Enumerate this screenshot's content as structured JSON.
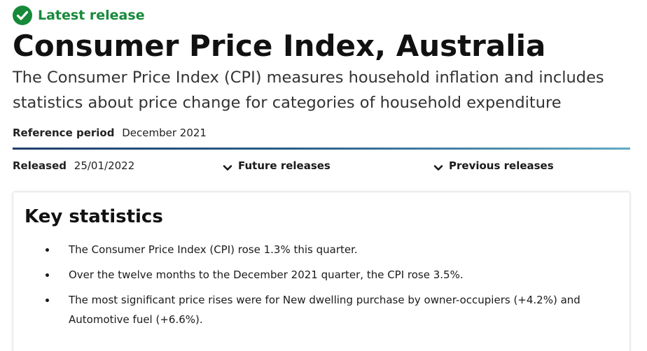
{
  "status": {
    "label": "Latest release",
    "color": "#178a3a",
    "icon": "check-circle-icon"
  },
  "header": {
    "title": "Consumer Price Index, Australia",
    "subtitle": "The Consumer Price Index (CPI) measures household inflation and includes statistics about price change for categories of household expenditure"
  },
  "reference": {
    "label": "Reference period",
    "value": "December 2021"
  },
  "release": {
    "label": "Released",
    "date": "25/01/2022",
    "future_label": "Future releases",
    "previous_label": "Previous releases",
    "toggle_icon": "chevron-down-icon"
  },
  "key_stats": {
    "heading": "Key statistics",
    "items": [
      "The Consumer Price Index (CPI) rose 1.3% this quarter.",
      "Over the twelve months to the December 2021 quarter, the CPI rose 3.5%.",
      "The most significant price rises were for New dwelling purchase by owner-occupiers (+4.2%) and Automotive fuel (+6.6%)."
    ]
  }
}
